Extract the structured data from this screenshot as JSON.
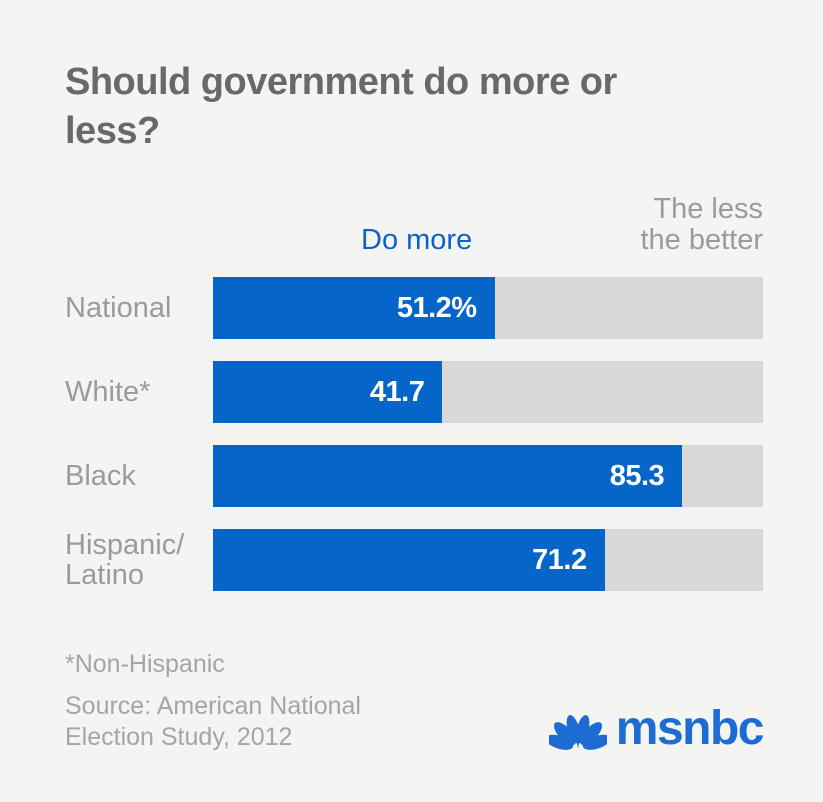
{
  "chart_data": {
    "type": "bar",
    "orientation": "horizontal",
    "title": "Should government do more or less?",
    "series_labels": {
      "filled": "Do more",
      "remainder": "The less\nthe better"
    },
    "categories": [
      "National",
      "White*",
      "Black",
      "Hispanic/Latino"
    ],
    "tick_labels": [
      "National",
      "White*",
      "Black",
      "Hispanic/\nLatino"
    ],
    "values": [
      51.2,
      41.7,
      85.3,
      71.2
    ],
    "value_labels": [
      "51.2%",
      "41.7",
      "85.3",
      "71.2"
    ],
    "xlim": [
      0,
      100
    ],
    "grid": false,
    "legend_position": "above-bars",
    "bar_color": "#0665c8",
    "track_color": "#d8d8d7"
  },
  "colors": {
    "background": "#f4f4f2",
    "title_gray": "#696969",
    "label_gray": "#9b9b9b",
    "footer_gray": "#a5a5a5",
    "accent_blue": "#0665c8",
    "logo_blue": "#1c6cd3",
    "value_text": "#ffffff"
  },
  "footer": {
    "footnote": "*Non-Hispanic",
    "source": "Source: American National\nElection Study, 2012",
    "brand": "msnbc"
  }
}
